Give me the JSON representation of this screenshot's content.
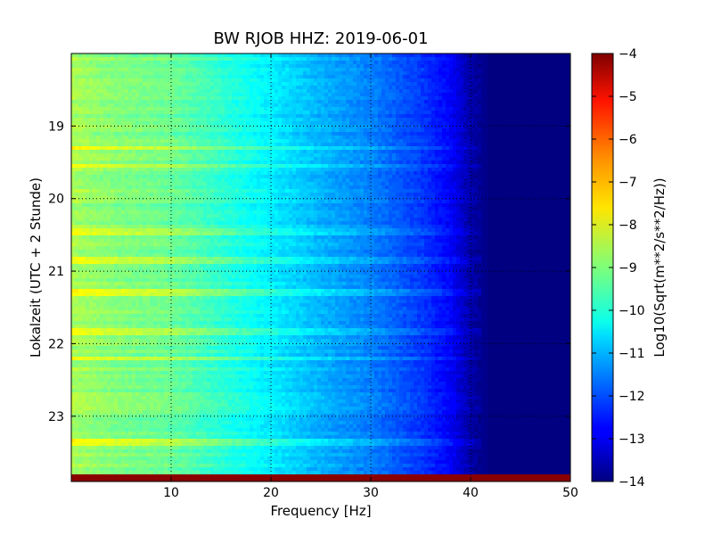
{
  "chart_data": {
    "type": "heatmap",
    "title": "BW RJOB HHZ: 2019-06-01",
    "xlabel": "Frequency [Hz]",
    "ylabel": "Lokalzeit (UTC + 2 Stunde)",
    "colorbar_label": "Log10(Sqrt(m**2/s**2/Hz))",
    "xlim": [
      0,
      50
    ],
    "ylim": [
      23.9,
      18.0
    ],
    "x_ticks": [
      10,
      20,
      30,
      40,
      50
    ],
    "x_tick_labels": [
      "10",
      "20",
      "30",
      "40",
      "50"
    ],
    "y_ticks": [
      19,
      20,
      21,
      22,
      23
    ],
    "y_tick_labels": [
      "19",
      "20",
      "21",
      "22",
      "23"
    ],
    "clim": [
      -14,
      -4
    ],
    "colorbar_ticks": [
      -4,
      -5,
      -6,
      -7,
      -8,
      -9,
      -10,
      -11,
      -12,
      -13,
      -14
    ],
    "colorbar_tick_labels": [
      "−4",
      "−5",
      "−6",
      "−7",
      "−8",
      "−9",
      "−10",
      "−11",
      "−12",
      "−13",
      "−14"
    ],
    "colormap": "jet",
    "grid": true,
    "spectrum_profile": {
      "frequency_hz": [
        0,
        2,
        5,
        10,
        15,
        20,
        25,
        30,
        35,
        38,
        40,
        42,
        50
      ],
      "log10_amplitude": [
        -8.6,
        -8.8,
        -9.0,
        -9.2,
        -9.8,
        -10.4,
        -11.0,
        -11.5,
        -12.2,
        -12.8,
        -13.6,
        -14.0,
        -14.0
      ]
    },
    "bright_bands_hour": [
      19.3,
      19.55,
      20.45,
      20.85,
      21.3,
      21.85,
      22.2,
      23.35
    ]
  }
}
